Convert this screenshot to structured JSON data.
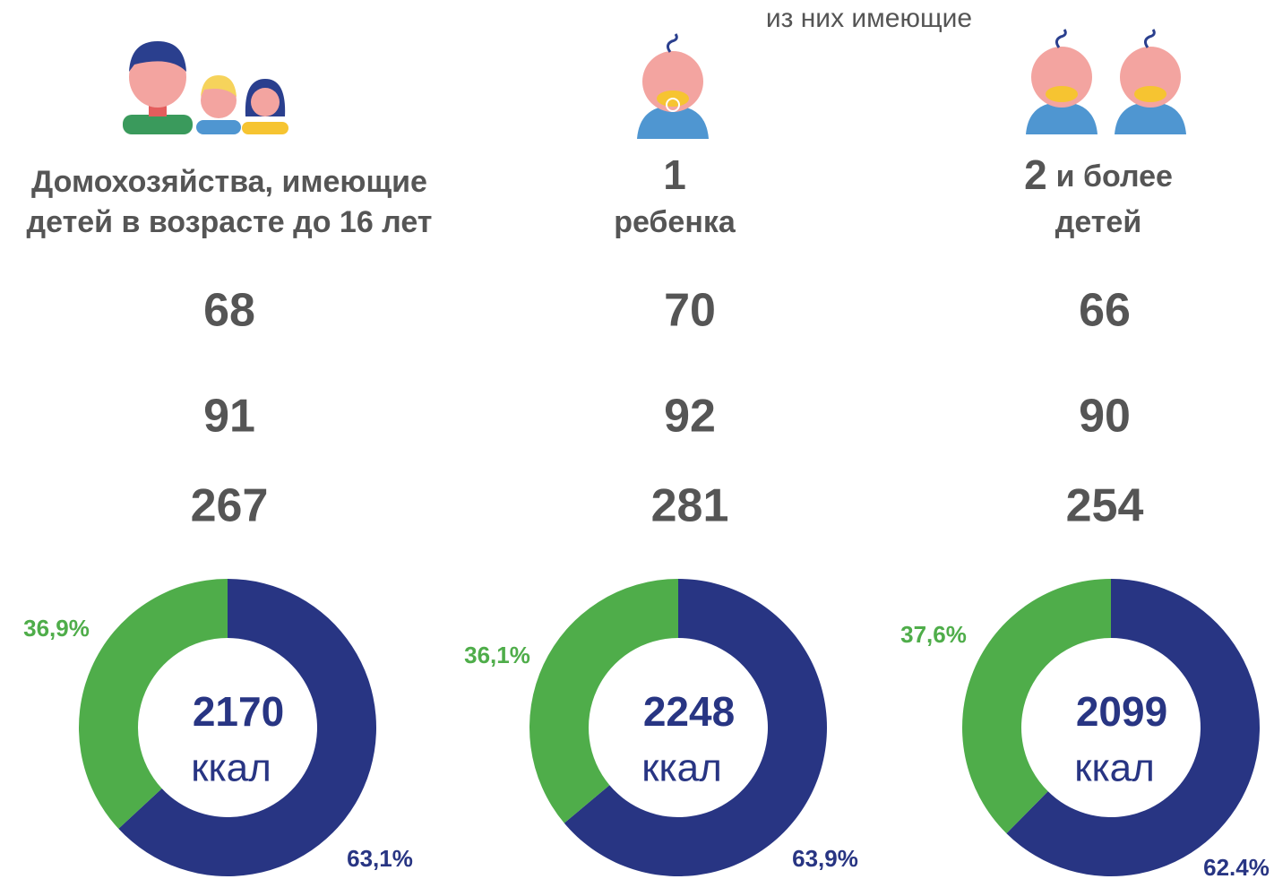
{
  "header": "из них имеющие",
  "columns": [
    {
      "title_lines": [
        "Домохозяйства, имеющие",
        "детей в возрасте до 16 лет"
      ],
      "stats": [
        68,
        91,
        267
      ]
    },
    {
      "title_number": 1,
      "title_lines": [
        "ребенка"
      ],
      "stats": [
        70,
        92,
        281
      ]
    },
    {
      "title_number": 2,
      "title_inline": "и более",
      "title_lines": [
        "детей"
      ],
      "stats": [
        66,
        90,
        254
      ]
    }
  ],
  "chart_data": [
    {
      "type": "donut",
      "total": 2170,
      "unit": "ккал",
      "values": [
        63.1,
        36.9
      ],
      "value_labels": [
        "63,1%",
        "36,9%"
      ],
      "colors": [
        "#283583",
        "#4fad4a"
      ]
    },
    {
      "type": "donut",
      "total": 2248,
      "unit": "ккал",
      "values": [
        63.9,
        36.1
      ],
      "value_labels": [
        "63,9%",
        "36,1%"
      ],
      "colors": [
        "#283583",
        "#4fad4a"
      ]
    },
    {
      "type": "donut",
      "total": 2099,
      "unit": "ккал",
      "values": [
        62.4,
        37.6
      ],
      "value_labels": [
        "62.4%",
        "37,6%"
      ],
      "colors": [
        "#283583",
        "#4fad4a"
      ]
    }
  ]
}
